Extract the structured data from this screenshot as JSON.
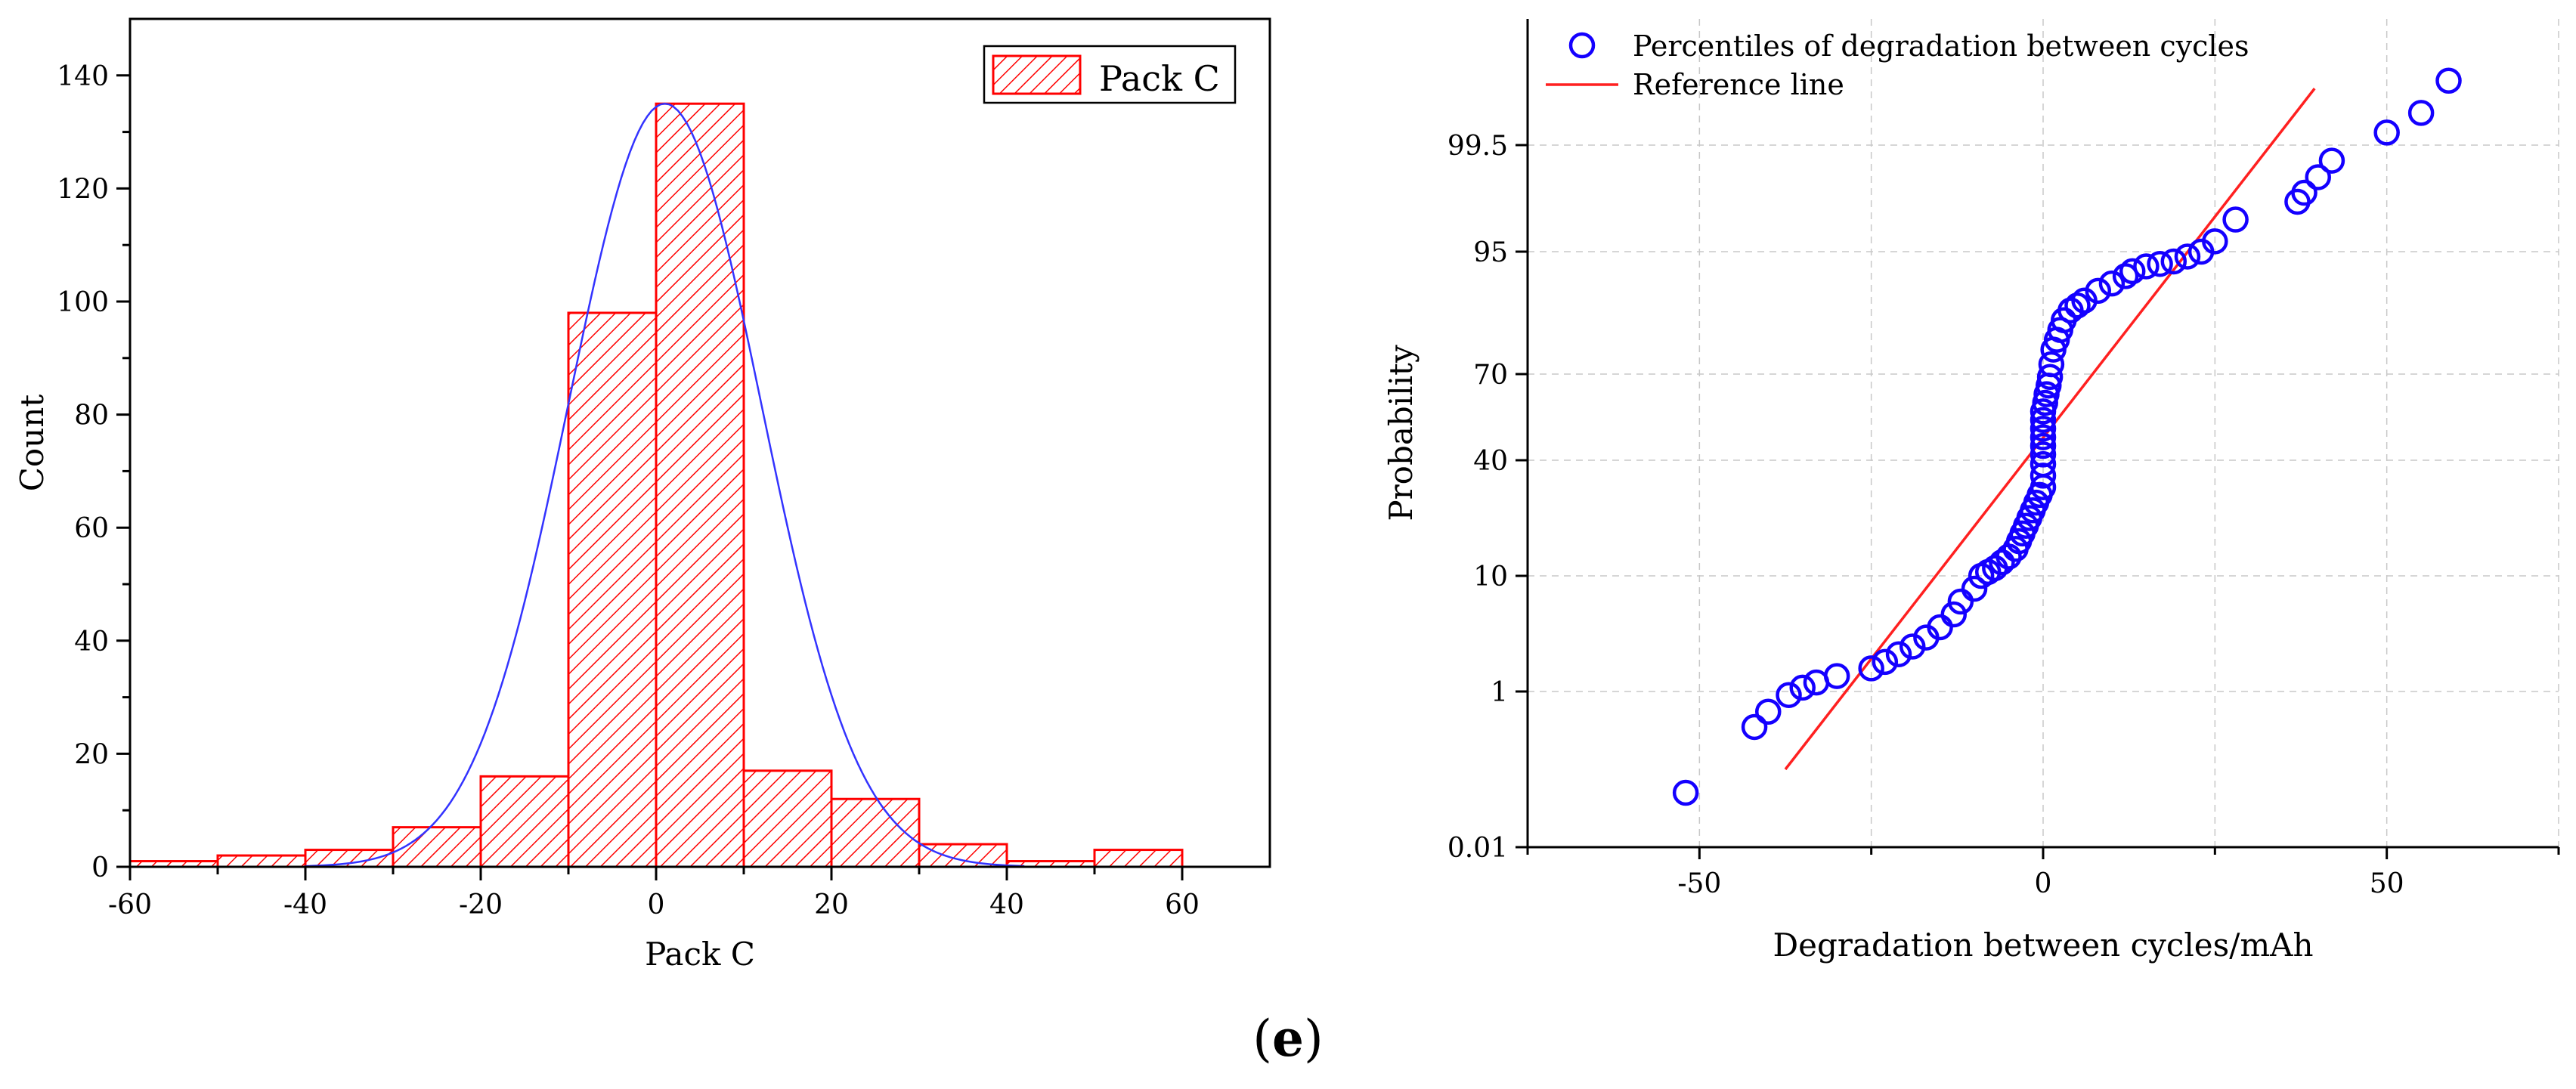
{
  "chart_data": [
    {
      "type": "bar",
      "subtype": "histogram",
      "title": "",
      "xlabel": "Pack C",
      "ylabel": "Count",
      "xlim": [
        -60,
        70
      ],
      "ylim": [
        0,
        150
      ],
      "xticks": [
        -60,
        -40,
        -20,
        0,
        20,
        40,
        60
      ],
      "yticks": [
        0,
        20,
        40,
        60,
        80,
        100,
        120,
        140
      ],
      "bin_edges": [
        -60,
        -50,
        -40,
        -30,
        -20,
        -10,
        0,
        10,
        20,
        30,
        40,
        50,
        60
      ],
      "values": [
        1,
        2,
        3,
        7,
        16,
        98,
        135,
        17,
        12,
        4,
        1,
        3
      ],
      "series": [
        {
          "name": "Pack C",
          "color": "#ff0000"
        }
      ],
      "fit_curve": {
        "type": "normal",
        "color": "#3333ff",
        "peak": 135,
        "mean": 1,
        "sd": 11
      },
      "legend": {
        "label": "Pack C",
        "placement": "top-right"
      }
    },
    {
      "type": "scatter",
      "subtype": "probability-plot",
      "xlabel": "Degradation between cycles/mAh",
      "ylabel": "Probability",
      "xlim": [
        -75,
        75
      ],
      "xticks": [
        -50,
        0,
        50
      ],
      "yticks": [
        "0.01",
        "1",
        "10",
        "40",
        "70",
        "95",
        "99.5"
      ],
      "ytick_values": [
        0.01,
        1,
        10,
        40,
        70,
        95,
        99.5
      ],
      "grid": true,
      "series": [
        {
          "name": "Percentiles of degradation between cycles",
          "color": "#1400ff",
          "points": [
            [
              -52,
              0.05
            ],
            [
              -42,
              0.35
            ],
            [
              -40,
              0.55
            ],
            [
              -37,
              0.9
            ],
            [
              -35,
              1.3
            ],
            [
              -33,
              1.7
            ],
            [
              -30,
              2.2
            ],
            [
              -25,
              2.8
            ],
            [
              -23,
              3.3
            ],
            [
              -21,
              3.9
            ],
            [
              -19,
              4.5
            ],
            [
              -17,
              5.2
            ],
            [
              -15,
              6
            ],
            [
              -13,
              7
            ],
            [
              -12,
              8
            ],
            [
              -10,
              9
            ],
            [
              -9,
              10
            ],
            [
              -8,
              11
            ],
            [
              -7,
              12
            ],
            [
              -6,
              13.5
            ],
            [
              -5,
              15
            ],
            [
              -4,
              17
            ],
            [
              -3.5,
              19
            ],
            [
              -3,
              21
            ],
            [
              -2.5,
              23
            ],
            [
              -2,
              25
            ],
            [
              -1.5,
              27
            ],
            [
              -1,
              29
            ],
            [
              -0.5,
              31
            ],
            [
              0,
              33
            ],
            [
              0,
              36
            ],
            [
              0,
              39
            ],
            [
              0,
              42
            ],
            [
              0,
              45
            ],
            [
              0,
              48
            ],
            [
              0,
              51
            ],
            [
              0,
              54
            ],
            [
              0,
              57
            ],
            [
              0.3,
              60
            ],
            [
              0.5,
              63
            ],
            [
              0.8,
              66
            ],
            [
              1,
              69
            ],
            [
              1.2,
              72
            ],
            [
              1.5,
              75
            ],
            [
              2,
              77
            ],
            [
              2.5,
              79
            ],
            [
              3,
              81
            ],
            [
              4,
              83
            ],
            [
              5,
              84
            ],
            [
              6,
              85
            ],
            [
              8,
              87
            ],
            [
              10,
              88.5
            ],
            [
              12,
              90
            ],
            [
              13,
              91
            ],
            [
              15,
              92
            ],
            [
              17,
              92.5
            ],
            [
              19,
              93
            ],
            [
              21,
              94
            ],
            [
              23,
              95
            ],
            [
              25,
              96
            ],
            [
              28,
              97.5
            ],
            [
              37,
              98.3
            ],
            [
              38,
              98.6
            ],
            [
              40,
              99
            ],
            [
              42,
              99.3
            ],
            [
              50,
              99.65
            ],
            [
              55,
              99.8
            ],
            [
              59,
              99.92
            ]
          ]
        },
        {
          "name": "Reference line",
          "type": "line",
          "color": "#ff2020",
          "points": [
            [
              -37.5,
              0.1
            ],
            [
              39.5,
              99.9
            ]
          ]
        }
      ],
      "legend": {
        "placement": "top-left"
      }
    }
  ],
  "caption": {
    "open": "(",
    "label": "e",
    "close": ")"
  }
}
